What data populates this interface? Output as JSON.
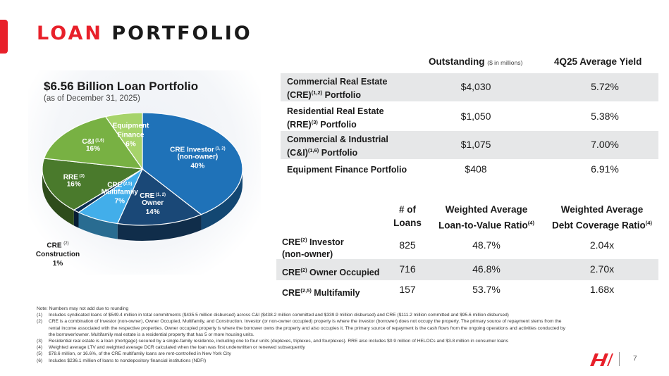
{
  "title": {
    "word1": "LOAN",
    "word2": "PORTFOLIO"
  },
  "pie": {
    "title": "$6.56 Billion Loan Portfolio",
    "subtitle": "(as of December 31, 2025)",
    "slices": [
      {
        "name": "CRE Investor (non-owner)",
        "line1": "CRE Investor",
        "sup": "(1, 2)",
        "line2": "(non-owner)",
        "pct": "40%",
        "value": 40,
        "color": "#1f72b8"
      },
      {
        "name": "CRE Owner",
        "line1": "CRE",
        "sup": "(1, 2)",
        "line2": "Owner",
        "pct": "14%",
        "value": 14,
        "color": "#1a4877"
      },
      {
        "name": "CRE Multifamily",
        "line1": "CRE",
        "sup": "(2,5)",
        "line2": "Multifamily",
        "pct": "7%",
        "value": 7,
        "color": "#42aeea"
      },
      {
        "name": "CRE Construction",
        "line1": "CRE",
        "sup": "(2)",
        "line2": "Construction",
        "pct": "1%",
        "value": 1,
        "color": "#0d2f52"
      },
      {
        "name": "RRE",
        "line1": "RRE",
        "sup": "(3)",
        "line2": "",
        "pct": "16%",
        "value": 16,
        "color": "#4a7a2c"
      },
      {
        "name": "C&I",
        "line1": "C&I",
        "sup": "(1,6)",
        "line2": "",
        "pct": "16%",
        "value": 16,
        "color": "#78b143"
      },
      {
        "name": "Equipment Finance",
        "line1": "Equipment",
        "sup": "",
        "line2": "Finance",
        "pct": "6%",
        "value": 6,
        "color": "#a6d36a"
      }
    ]
  },
  "table1": {
    "col1": "Outstanding",
    "col1_unit": "($ in millions)",
    "col2": "4Q25 Average Yield",
    "rows": [
      {
        "line1": "Commercial Real Estate",
        "line2_pre": "(CRE)",
        "sup": "(1,2)",
        "line2_post": " Portfolio",
        "outstanding": "$4,030",
        "yield": "5.72%"
      },
      {
        "line1": "Residential Real Estate",
        "line2_pre": "(RRE)",
        "sup": "(3)",
        "line2_post": " Portfolio",
        "outstanding": "$1,050",
        "yield": "5.38%"
      },
      {
        "line1": "Commercial & Industrial",
        "line2_pre": "(C&I)",
        "sup": "(1,6)",
        "line2_post": " Portfolio",
        "outstanding": "$1,075",
        "yield": "7.00%"
      },
      {
        "line1": "Equipment Finance Portfolio",
        "line2_pre": "",
        "sup": "",
        "line2_post": "",
        "outstanding": "$408",
        "yield": "6.91%"
      }
    ]
  },
  "table2": {
    "h1_line1": "# of",
    "h1_line2": "Loans",
    "h2_line1": "Weighted Average",
    "h2_line2": "Loan-to-Value Ratio",
    "h2_sup": "(4)",
    "h3_line1": "Weighted Average",
    "h3_line2": "Debt Coverage Ratio",
    "h3_sup": "(4)",
    "rows": [
      {
        "pre": "CRE",
        "sup": "(2)",
        "post": " Investor",
        "line2": "(non-owner)",
        "loans": "825",
        "ltv": "48.7%",
        "dcr": "2.04x"
      },
      {
        "pre": "CRE",
        "sup": "(2)",
        "post": " Owner Occupied",
        "line2": "",
        "loans": "716",
        "ltv": "46.8%",
        "dcr": "2.70x"
      },
      {
        "pre": "CRE",
        "sup": "(2,5)",
        "post": " Multifamily",
        "line2": "",
        "loans": "157",
        "ltv": "53.7%",
        "dcr": "1.68x"
      }
    ]
  },
  "notes": {
    "intro": "Note: Numbers may not add due to rounding",
    "items": [
      {
        "num": "(1)",
        "text": "Includes syndicated loans of $549.4 million in total commitments ($435.5 million disbursed) across C&I ($438.2 million committed and $339.9 million disbursed) and CRE ($111.2 million committed and $95.6 million disbursed)"
      },
      {
        "num": "(2)",
        "text": "CRE is a combination of Investor (non-owner), Owner Occupied, Multifamily, and Construction. Investor (or non-owner occupied) property is where the investor (borrower) does not occupy the property. The primary source of repayment stems from the rental income associated with the respective properties. Owner occupied property is where the borrower owns the property and also occupies it. The primary source of repayment is the cash flows from the ongoing operations and activities conducted by the borrower/owner. Multifamily real estate is a residential property that has 5 or more housing units."
      },
      {
        "num": "(3)",
        "text": "Residential real estate is a loan (mortgage) secured by a single-family residence, including one to four units (duplexes, triplexes, and fourplexes). RRE also includes $0.9 million of HELOCs and $3.8 million in consumer loans"
      },
      {
        "num": "(4)",
        "text": "Weighted average LTV and weighted average DCR calculated when the loan was first underwritten or renewed subsequently"
      },
      {
        "num": "(5)",
        "text": "$78.6 million, or 16.6%, of the CRE multifamily loans are rent-controlled in New York City"
      },
      {
        "num": "(6)",
        "text": "Includes $236.1 million of loans to nondepository financial institutions (NDFI)"
      }
    ]
  },
  "footer": {
    "page": "7",
    "logo_icon": "brand-logo-icon",
    "brand_color": "#e8202a"
  }
}
